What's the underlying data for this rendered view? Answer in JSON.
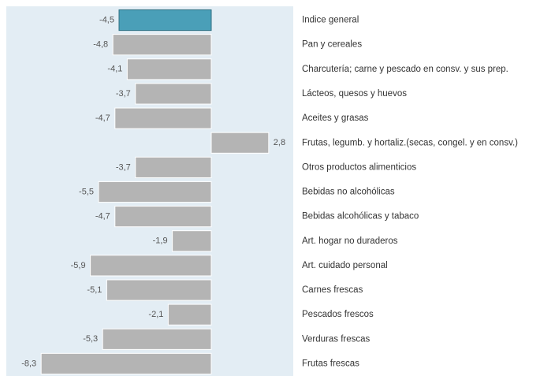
{
  "chart_data": {
    "type": "barh",
    "categories": [
      "Indice general",
      "Pan y cereales",
      "Charcutería; carne y pescado en consv. y sus prep.",
      "Lácteos, quesos y huevos",
      "Aceites y grasas",
      "Frutas, legumb. y hortaliz.(secas, congel. y en consv.)",
      "Otros productos alimenticios",
      "Bebidas no alcohólicas",
      "Bebidas alcohólicas y tabaco",
      "Art. hogar no duraderos",
      "Art. cuidado personal",
      "Carnes frescas",
      "Pescados frescos",
      "Verduras frescas",
      "Frutas frescas"
    ],
    "values": [
      -4.5,
      -4.8,
      -4.1,
      -3.7,
      -4.7,
      2.8,
      -3.7,
      -5.5,
      -4.7,
      -1.9,
      -5.9,
      -5.1,
      -2.1,
      -5.3,
      -8.3
    ],
    "value_labels": [
      "-4,5",
      "-4,8",
      "-4,1",
      "-3,7",
      "-4,7",
      "2,8",
      "-3,7",
      "-5,5",
      "-4,7",
      "-1,9",
      "-5,9",
      "-5,1",
      "-2,1",
      "-5,3",
      "-8,3"
    ],
    "colors": [
      "#4a9fb8",
      "#b4b4b4",
      "#b4b4b4",
      "#b4b4b4",
      "#b4b4b4",
      "#b4b4b4",
      "#b4b4b4",
      "#b4b4b4",
      "#b4b4b4",
      "#b4b4b4",
      "#b4b4b4",
      "#b4b4b4",
      "#b4b4b4",
      "#b4b4b4",
      "#b4b4b4"
    ],
    "xlim": [
      -10,
      4
    ]
  }
}
